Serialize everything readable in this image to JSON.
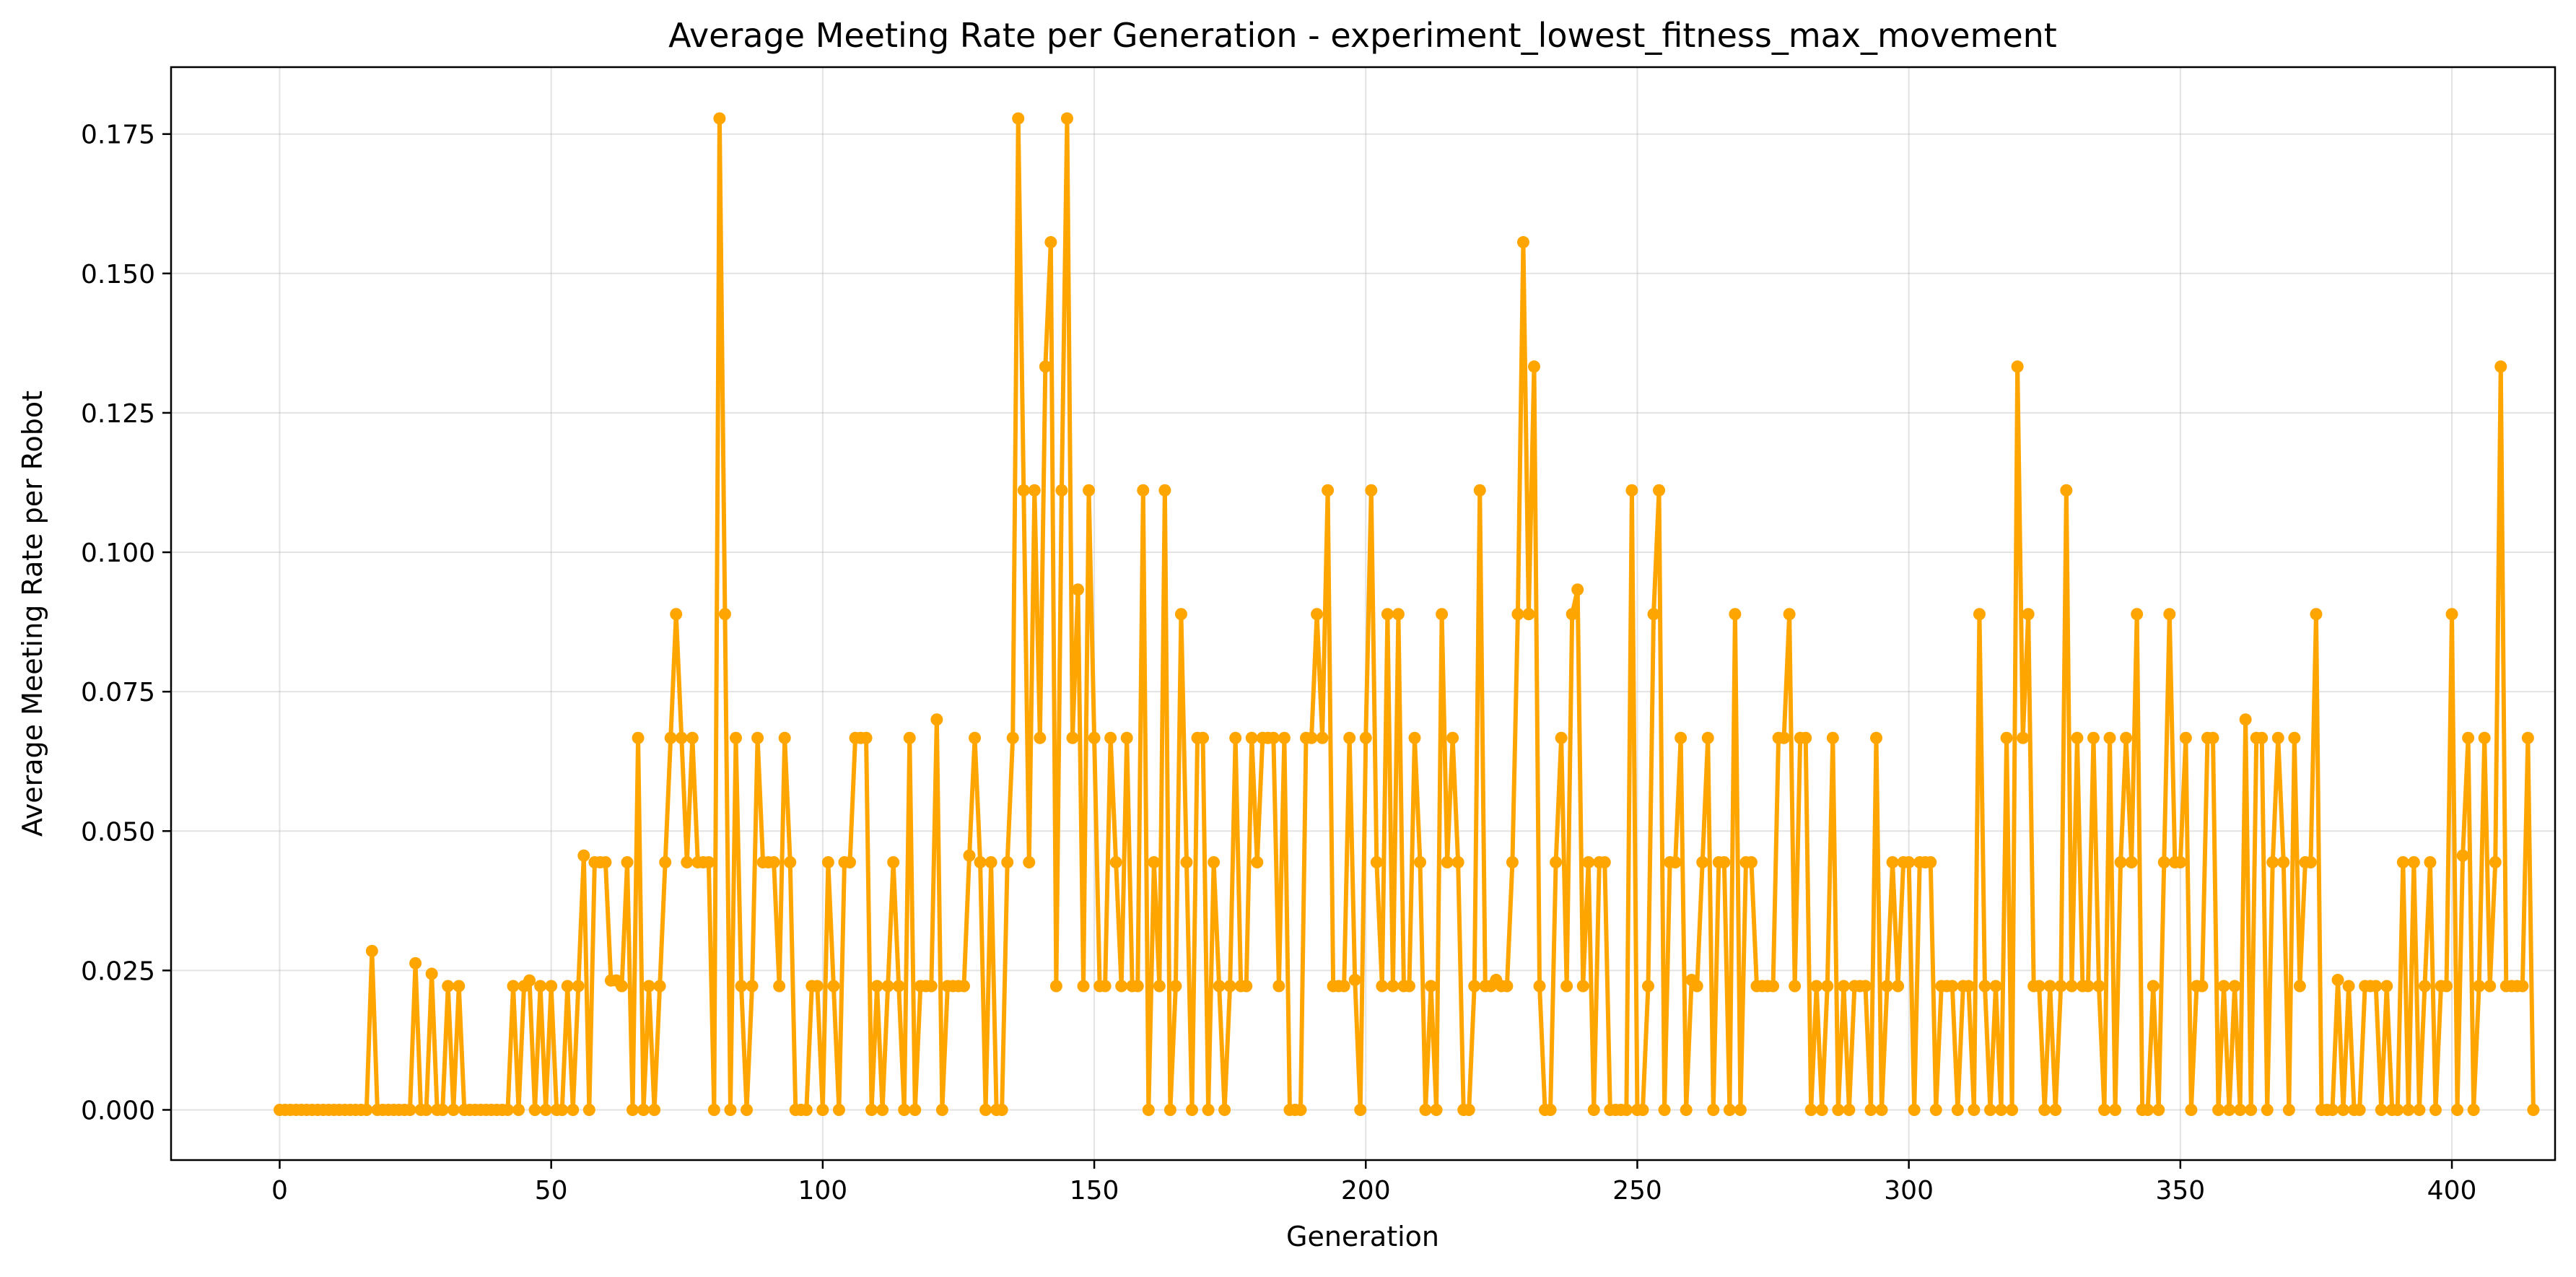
{
  "chart_data": {
    "type": "line",
    "title": "Average Meeting Rate per Generation - experiment_lowest_fitness_max_movement",
    "xlabel": "Generation",
    "ylabel": "Average Meeting Rate per Robot",
    "xlim": [
      -20,
      419
    ],
    "ylim": [
      -0.009,
      0.187
    ],
    "xticks": [
      0,
      50,
      100,
      150,
      200,
      250,
      300,
      350,
      400
    ],
    "xtick_labels": [
      "0",
      "50",
      "100",
      "150",
      "200",
      "250",
      "300",
      "350",
      "400"
    ],
    "yticks": [
      0,
      0.025,
      0.05,
      0.075,
      0.1,
      0.125,
      0.15,
      0.175
    ],
    "ytick_labels": [
      "0.000",
      "0.025",
      "0.050",
      "0.075",
      "0.100",
      "0.125",
      "0.150",
      "0.175"
    ],
    "grid": true,
    "series": [
      {
        "color": "#FFA500",
        "marker": "circle",
        "x_start": 0,
        "x_step": 1,
        "values": [
          0,
          0,
          0,
          0,
          0,
          0,
          0,
          0,
          0,
          0,
          0,
          0,
          0,
          0,
          0,
          0,
          0,
          0.0285,
          0,
          0,
          0,
          0,
          0,
          0,
          0,
          0.0263,
          0,
          0,
          0.0244,
          0,
          0,
          0.0222,
          0,
          0.0222,
          0,
          0,
          0,
          0,
          0,
          0,
          0,
          0,
          0,
          0.0222,
          0,
          0.0222,
          0.0232,
          0,
          0.0222,
          0,
          0.0222,
          0,
          0,
          0.0222,
          0,
          0.0222,
          0.0456,
          0,
          0.0444,
          0.0444,
          0.0444,
          0.0232,
          0.0232,
          0.0222,
          0.0444,
          0,
          0.0667,
          0,
          0.0222,
          0,
          0.0222,
          0.0444,
          0.0667,
          0.0889,
          0.0667,
          0.0444,
          0.0667,
          0.0444,
          0.0444,
          0.0444,
          0,
          0.1778,
          0.0889,
          0,
          0.0667,
          0.0222,
          0,
          0.0222,
          0.0667,
          0.0444,
          0.0444,
          0.0444,
          0.0222,
          0.0667,
          0.0444,
          0,
          0,
          0,
          0.0222,
          0.0222,
          0,
          0.0444,
          0.0222,
          0,
          0.0444,
          0.0444,
          0.0667,
          0.0667,
          0.0667,
          0,
          0.0222,
          0,
          0.0222,
          0.0444,
          0.0222,
          0,
          0.0667,
          0,
          0.0222,
          0.0222,
          0.0222,
          0.07,
          0,
          0.0222,
          0.0222,
          0.0222,
          0.0222,
          0.0456,
          0.0667,
          0.0444,
          0,
          0.0444,
          0,
          0,
          0.0444,
          0.0667,
          0.1778,
          0.1111,
          0.0444,
          0.1111,
          0.0667,
          0.1333,
          0.1556,
          0.0222,
          0.1111,
          0.1778,
          0.0667,
          0.0933,
          0.0222,
          0.1111,
          0.0667,
          0.0222,
          0.0222,
          0.0667,
          0.0444,
          0.0222,
          0.0667,
          0.0222,
          0.0222,
          0.1111,
          0,
          0.0444,
          0.0222,
          0.1111,
          0,
          0.0222,
          0.0889,
          0.0444,
          0,
          0.0667,
          0.0667,
          0,
          0.0444,
          0.0222,
          0,
          0.0222,
          0.0667,
          0.0222,
          0.0222,
          0.0667,
          0.0444,
          0.0667,
          0.0667,
          0.0667,
          0.0222,
          0.0667,
          0,
          0,
          0,
          0.0667,
          0.0667,
          0.0889,
          0.0667,
          0.1111,
          0.0222,
          0.0222,
          0.0222,
          0.0667,
          0.0233,
          0,
          0.0667,
          0.1111,
          0.0444,
          0.0222,
          0.0889,
          0.0222,
          0.0889,
          0.0222,
          0.0222,
          0.0667,
          0.0444,
          0,
          0.0222,
          0,
          0.0889,
          0.0444,
          0.0667,
          0.0444,
          0,
          0,
          0.0222,
          0.1111,
          0.0222,
          0.0222,
          0.0233,
          0.0222,
          0.0222,
          0.0444,
          0.0889,
          0.1556,
          0.0889,
          0.1333,
          0.0222,
          0,
          0,
          0.0444,
          0.0667,
          0.0222,
          0.0889,
          0.0933,
          0.0222,
          0.0444,
          0,
          0.0444,
          0.0444,
          0,
          0,
          0,
          0,
          0.1111,
          0,
          0,
          0.0222,
          0.0889,
          0.1111,
          0,
          0.0444,
          0.0444,
          0.0667,
          0,
          0.0233,
          0.0222,
          0.0444,
          0.0667,
          0,
          0.0444,
          0.0444,
          0,
          0.0889,
          0,
          0.0444,
          0.0444,
          0.0222,
          0.0222,
          0.0222,
          0.0222,
          0.0667,
          0.0667,
          0.0889,
          0.0222,
          0.0667,
          0.0667,
          0,
          0.0222,
          0,
          0.0222,
          0.0667,
          0,
          0.0222,
          0,
          0.0222,
          0.0222,
          0.0222,
          0,
          0.0667,
          0,
          0.0222,
          0.0444,
          0.0222,
          0.0444,
          0.0444,
          0,
          0.0444,
          0.0444,
          0.0444,
          0,
          0.0222,
          0.0222,
          0.0222,
          0,
          0.0222,
          0.0222,
          0,
          0.0889,
          0.0222,
          0,
          0.0222,
          0,
          0.0667,
          0,
          0.1333,
          0.0667,
          0.0889,
          0.0222,
          0.0222,
          0,
          0.0222,
          0,
          0.0222,
          0.1111,
          0.0222,
          0.0667,
          0.0222,
          0.0222,
          0.0667,
          0.0222,
          0,
          0.0667,
          0,
          0.0444,
          0.0667,
          0.0444,
          0.0889,
          0,
          0,
          0.0222,
          0,
          0.0444,
          0.0889,
          0.0444,
          0.0444,
          0.0667,
          0,
          0.0222,
          0.0222,
          0.0667,
          0.0667,
          0,
          0.0222,
          0,
          0.0222,
          0,
          0.07,
          0,
          0.0667,
          0.0667,
          0,
          0.0444,
          0.0667,
          0.0444,
          0,
          0.0667,
          0.0222,
          0.0444,
          0.0444,
          0.0889,
          0,
          0,
          0,
          0.0233,
          0,
          0.0222,
          0,
          0,
          0.0222,
          0.0222,
          0.0222,
          0,
          0.0222,
          0,
          0,
          0.0444,
          0,
          0.0444,
          0,
          0.0222,
          0.0444,
          0,
          0.0222,
          0.0222,
          0.0889,
          0,
          0.0456,
          0.0667,
          0,
          0.0222,
          0.0667,
          0.0222,
          0.0444,
          0.1333,
          0.0222,
          0.0222,
          0.0222,
          0.0222,
          0.0667,
          0
        ]
      }
    ]
  }
}
